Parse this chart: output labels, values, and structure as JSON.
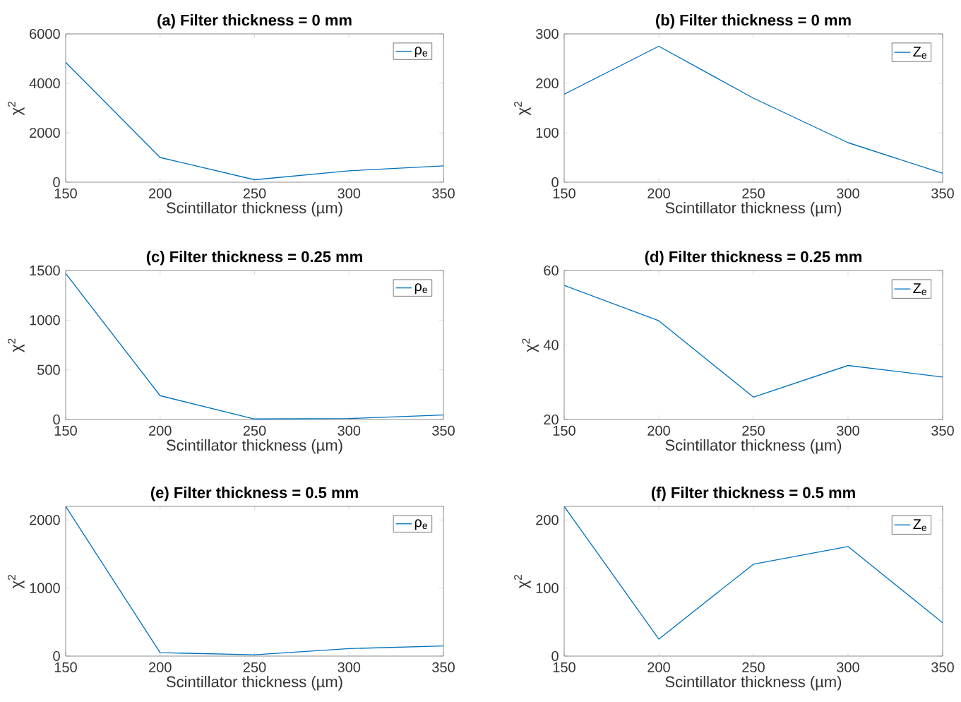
{
  "chart_data": [
    {
      "type": "line",
      "title": "(a) Filter thickness = 0 mm",
      "xlabel": "Scintillator thickness (µm)",
      "ylabel": "χ$^{2}$",
      "x": [
        150,
        200,
        250,
        300,
        350
      ],
      "series": [
        {
          "name": "ρ$_{e}$",
          "color": "#0072bd",
          "values": [
            4850,
            1000,
            100,
            460,
            660
          ]
        }
      ],
      "xlim": [
        150,
        350
      ],
      "ylim": [
        0,
        6000
      ],
      "xticks": [
        150,
        200,
        250,
        300,
        350
      ],
      "yticks": [
        0,
        2000,
        4000,
        6000
      ],
      "legend": "top right"
    },
    {
      "type": "line",
      "title": "(b) Filter thickness = 0 mm",
      "xlabel": "Scintillator thickness (µm)",
      "ylabel": "χ$^{2}$",
      "x": [
        150,
        200,
        250,
        300,
        350
      ],
      "series": [
        {
          "name": "Z$_{e}$",
          "color": "#0072bd",
          "values": [
            178,
            275,
            170,
            80,
            18
          ]
        }
      ],
      "xlim": [
        150,
        350
      ],
      "ylim": [
        0,
        300
      ],
      "xticks": [
        150,
        200,
        250,
        300,
        350
      ],
      "yticks": [
        0,
        100,
        200,
        300
      ],
      "legend": "top right"
    },
    {
      "type": "line",
      "title": "(c) Filter thickness = 0.25 mm",
      "xlabel": "Scintillator thickness (µm)",
      "ylabel": "χ$^{2}$",
      "x": [
        150,
        200,
        250,
        300,
        350
      ],
      "series": [
        {
          "name": "ρ$_{e}$",
          "color": "#0072bd",
          "values": [
            1470,
            240,
            5,
            10,
            45
          ]
        }
      ],
      "xlim": [
        150,
        350
      ],
      "ylim": [
        0,
        1500
      ],
      "xticks": [
        150,
        200,
        250,
        300,
        350
      ],
      "yticks": [
        0,
        500,
        1000,
        1500
      ],
      "legend": "top right"
    },
    {
      "type": "line",
      "title": "(d) Filter thickness = 0.25 mm",
      "xlabel": "Scintillator thickness (µm)",
      "ylabel": "χ$^{2}$",
      "x": [
        150,
        200,
        250,
        300,
        350
      ],
      "series": [
        {
          "name": "Z$_{e}$",
          "color": "#0072bd",
          "values": [
            56,
            46.5,
            26,
            34.5,
            31.4
          ]
        }
      ],
      "xlim": [
        150,
        350
      ],
      "ylim": [
        20,
        60
      ],
      "xticks": [
        150,
        200,
        250,
        300,
        350
      ],
      "yticks": [
        20,
        40,
        60
      ],
      "legend": "top right"
    },
    {
      "type": "line",
      "title": "(e) Filter thickness = 0.5 mm",
      "xlabel": "Scintillator thickness (µm)",
      "ylabel": "χ$^{2}$",
      "x": [
        150,
        200,
        250,
        300,
        350
      ],
      "series": [
        {
          "name": "ρ$_{e}$",
          "color": "#0072bd",
          "values": [
            2200,
            50,
            20,
            110,
            150
          ]
        }
      ],
      "xlim": [
        150,
        350
      ],
      "ylim": [
        0,
        2200
      ],
      "xticks": [
        150,
        200,
        250,
        300,
        350
      ],
      "yticks": [
        0,
        1000,
        2000
      ],
      "legend": "top right"
    },
    {
      "type": "line",
      "title": "(f) Filter thickness = 0.5 mm",
      "xlabel": "Scintillator thickness (µm)",
      "ylabel": "χ$^{2}$",
      "x": [
        150,
        200,
        250,
        300,
        350
      ],
      "series": [
        {
          "name": "Z$_{e}$",
          "color": "#0072bd",
          "values": [
            220,
            25,
            135,
            161,
            49
          ]
        }
      ],
      "xlim": [
        150,
        350
      ],
      "ylim": [
        0,
        220
      ],
      "xticks": [
        150,
        200,
        250,
        300,
        350
      ],
      "yticks": [
        0,
        100,
        200
      ],
      "legend": "top right"
    }
  ]
}
